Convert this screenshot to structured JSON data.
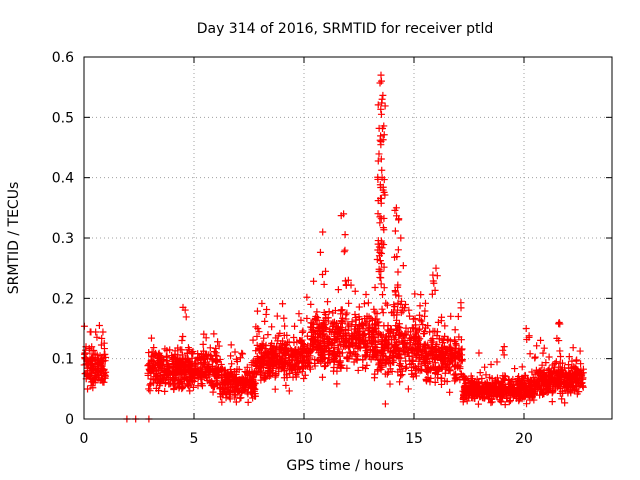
{
  "chart_data": {
    "type": "scatter",
    "title": "Day 314 of 2016, SRMTID for receiver ptld",
    "xlabel": "GPS time / hours",
    "ylabel": "SRMTID / TECUs",
    "xlim": [
      0,
      24
    ],
    "ylim": [
      0,
      0.6
    ],
    "xticks": [
      0,
      5,
      10,
      15,
      20
    ],
    "xtick_labels": [
      "0",
      "5",
      "10",
      "15",
      "20"
    ],
    "yticks": [
      0,
      0.1,
      0.2,
      0.3,
      0.4,
      0.5,
      0.6
    ],
    "ytick_labels": [
      "0",
      "0.1",
      "0.2",
      "0.3",
      "0.4",
      "0.5",
      "0.6"
    ],
    "grid": true,
    "marker": "+",
    "series_color": "#ff0000",
    "series": [
      {
        "name": "SRMTID",
        "segments": [
          {
            "x_range": [
              0.0,
              1.0
            ],
            "baseline": 0.085,
            "spread": 0.03
          },
          {
            "x_range": [
              2.9,
              6.2
            ],
            "baseline": 0.08,
            "spread": 0.03
          },
          {
            "x_range": [
              6.2,
              7.8
            ],
            "baseline": 0.06,
            "spread": 0.025
          },
          {
            "x_range": [
              7.8,
              10.3
            ],
            "baseline": 0.1,
            "spread": 0.035
          },
          {
            "x_range": [
              10.3,
              13.2
            ],
            "baseline": 0.13,
            "spread": 0.045
          },
          {
            "x_range": [
              13.2,
              15.5
            ],
            "baseline": 0.12,
            "spread": 0.05
          },
          {
            "x_range": [
              15.5,
              17.2
            ],
            "baseline": 0.1,
            "spread": 0.04
          },
          {
            "x_range": [
              17.2,
              20.5
            ],
            "baseline": 0.05,
            "spread": 0.02
          },
          {
            "x_range": [
              20.5,
              22.7
            ],
            "baseline": 0.065,
            "spread": 0.025
          }
        ],
        "zeros": [
          {
            "x": 1.95,
            "y": 0
          },
          {
            "x": 2.35,
            "y": 0
          },
          {
            "x": 2.95,
            "y": 0
          }
        ],
        "peaks": [
          {
            "x": 0.7,
            "y": 0.155
          },
          {
            "x": 4.5,
            "y": 0.185
          },
          {
            "x": 7.9,
            "y": 0.15
          },
          {
            "x": 10.85,
            "y": 0.31
          },
          {
            "x": 11.8,
            "y": 0.34
          },
          {
            "x": 13.5,
            "y": 0.57
          },
          {
            "x": 13.52,
            "y": 0.56
          },
          {
            "x": 13.55,
            "y": 0.53
          },
          {
            "x": 13.52,
            "y": 0.505
          },
          {
            "x": 13.5,
            "y": 0.46
          },
          {
            "x": 13.55,
            "y": 0.4
          },
          {
            "x": 13.45,
            "y": 0.335
          },
          {
            "x": 14.2,
            "y": 0.35
          },
          {
            "x": 14.3,
            "y": 0.33
          },
          {
            "x": 14.4,
            "y": 0.3
          },
          {
            "x": 13.7,
            "y": 0.025
          },
          {
            "x": 16.0,
            "y": 0.25
          },
          {
            "x": 19.1,
            "y": 0.12
          },
          {
            "x": 20.1,
            "y": 0.15
          },
          {
            "x": 21.6,
            "y": 0.16
          }
        ]
      }
    ]
  }
}
